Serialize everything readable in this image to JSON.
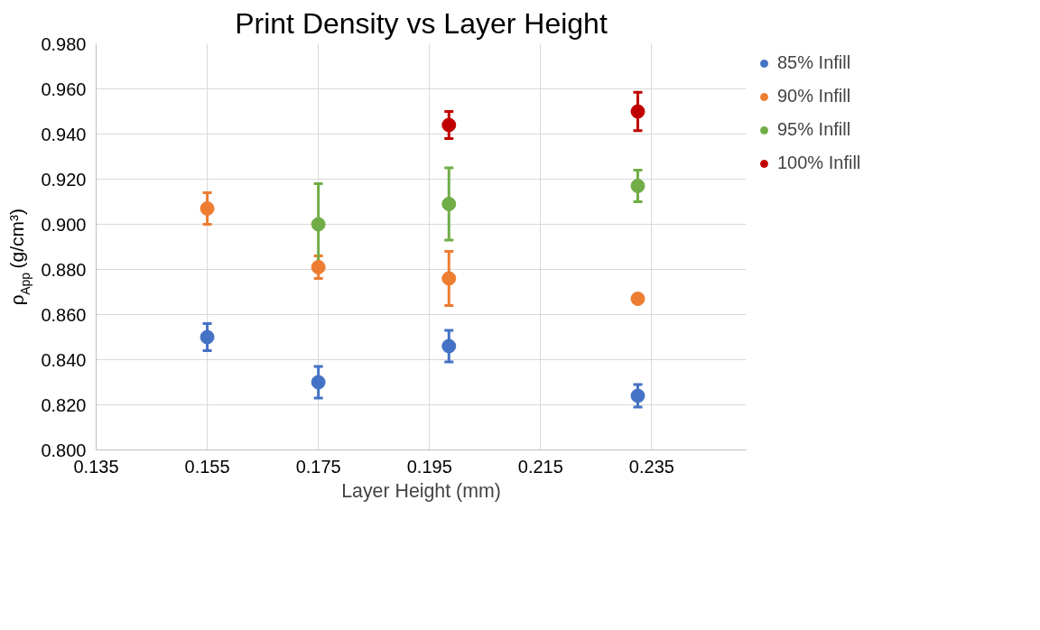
{
  "chart_data": {
    "type": "scatter",
    "title": "Print Density vs Layer Height",
    "xlabel": "Layer Height (mm)",
    "ylabel": "ρ$_{App}$ (g/cm³)",
    "xlim": [
      0.135,
      0.252
    ],
    "xticks": [
      0.135,
      0.155,
      0.175,
      0.195,
      0.215,
      0.235
    ],
    "ylim": [
      0.8,
      0.98
    ],
    "yticks": [
      {
        "value": 0.8,
        "label": "0.800"
      },
      {
        "value": 0.82,
        "label": "0.820"
      },
      {
        "value": 0.84,
        "label": "0.840"
      },
      {
        "value": 0.86,
        "label": "0.860"
      },
      {
        "value": 0.88,
        "label": "0.880"
      },
      {
        "value": 0.9,
        "label": "0.900"
      },
      {
        "value": 0.92,
        "label": "0.920"
      },
      {
        "value": 0.94,
        "label": "0.940"
      },
      {
        "value": 0.96,
        "label": "0.960"
      },
      {
        "value": 0.98,
        "label": "0.980"
      }
    ],
    "grid": true,
    "legend": "right",
    "marker": "circle",
    "series": [
      {
        "name": "85% Infill",
        "color": "#4472c4",
        "x": [
          0.155,
          0.175,
          0.1985,
          0.2325
        ],
        "values": [
          0.85,
          0.83,
          0.846,
          0.824
        ],
        "errors": [
          0.006,
          0.007,
          0.007,
          0.005
        ]
      },
      {
        "name": "90% Infill",
        "color": "#ed7d31",
        "x": [
          0.155,
          0.175,
          0.1985,
          0.2325
        ],
        "values": [
          0.907,
          0.881,
          0.876,
          0.867
        ],
        "errors": [
          0.007,
          0.005,
          0.012,
          0.001
        ]
      },
      {
        "name": "95% Infill",
        "color": "#70ad47",
        "x": [
          0.175,
          0.1985,
          0.2325
        ],
        "values": [
          0.9,
          0.909,
          0.917
        ],
        "errors": [
          0.018,
          0.016,
          0.007
        ]
      },
      {
        "name": "100% Infill",
        "color": "#c00000",
        "x": [
          0.1985,
          0.2325
        ],
        "values": [
          0.944,
          0.95
        ],
        "errors": [
          0.006,
          0.0085
        ]
      }
    ]
  }
}
